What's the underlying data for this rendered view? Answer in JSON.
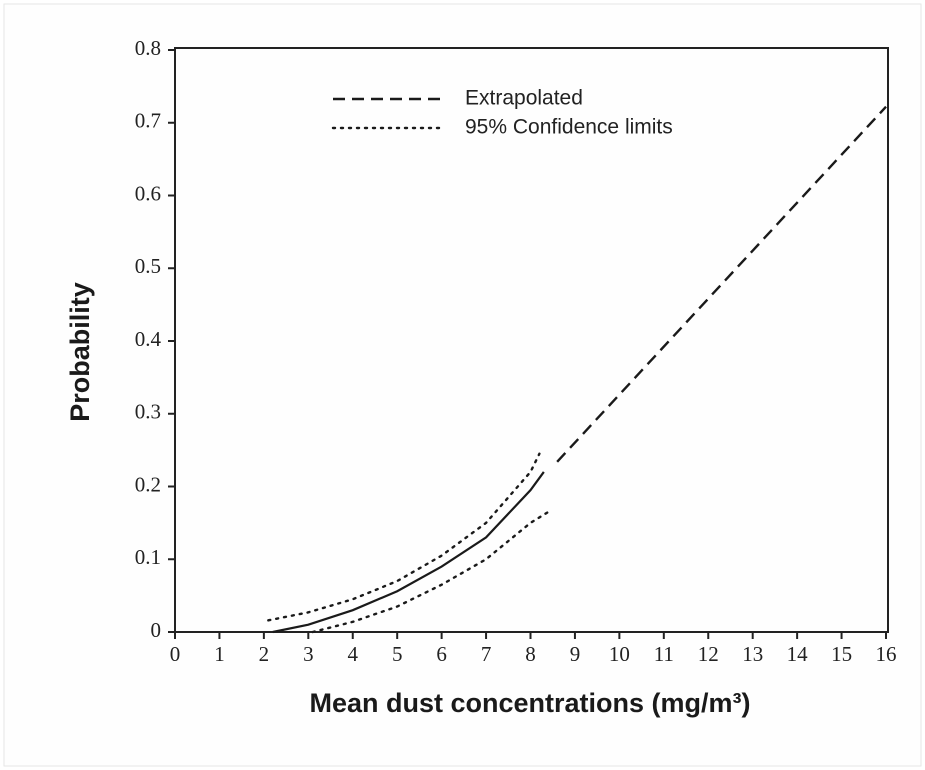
{
  "chart_data": {
    "type": "line",
    "xlabel": "Mean dust concentrations (mg/m³)",
    "ylabel": "Probability",
    "xlim": [
      0,
      16
    ],
    "xticks": [
      0,
      1,
      2,
      3,
      4,
      5,
      6,
      7,
      8,
      9,
      10,
      11,
      12,
      13,
      14,
      15,
      16
    ],
    "ylim": [
      0,
      0.8
    ],
    "yticks": [
      0,
      0.1,
      0.2,
      0.3,
      0.4,
      0.5,
      0.6,
      0.7,
      0.8
    ],
    "legend": "top",
    "series": [
      {
        "color": "#1a1a1a",
        "style": "solid",
        "x": [
          2.2,
          3,
          4,
          5,
          6,
          7,
          8,
          8.3
        ],
        "values": [
          0,
          0.01,
          0.03,
          0.056,
          0.09,
          0.13,
          0.195,
          0.22
        ]
      },
      {
        "name": "Extrapolated",
        "color": "#1a1a1a",
        "style": "dashed",
        "x": [
          8.6,
          16
        ],
        "values": [
          0.234,
          0.722
        ]
      },
      {
        "name": "95% Confidence limits",
        "color": "#1a1a1a",
        "style": "dotted",
        "x": [
          2.1,
          3,
          4,
          5,
          6,
          7,
          8,
          8.2
        ],
        "values": [
          0.016,
          0.027,
          0.045,
          0.07,
          0.105,
          0.15,
          0.22,
          0.245
        ]
      },
      {
        "color": "#1a1a1a",
        "style": "dotted",
        "x": [
          3.1,
          4,
          5,
          6,
          7,
          8,
          8.4
        ],
        "values": [
          0,
          0.014,
          0.035,
          0.065,
          0.1,
          0.15,
          0.165
        ]
      }
    ]
  }
}
